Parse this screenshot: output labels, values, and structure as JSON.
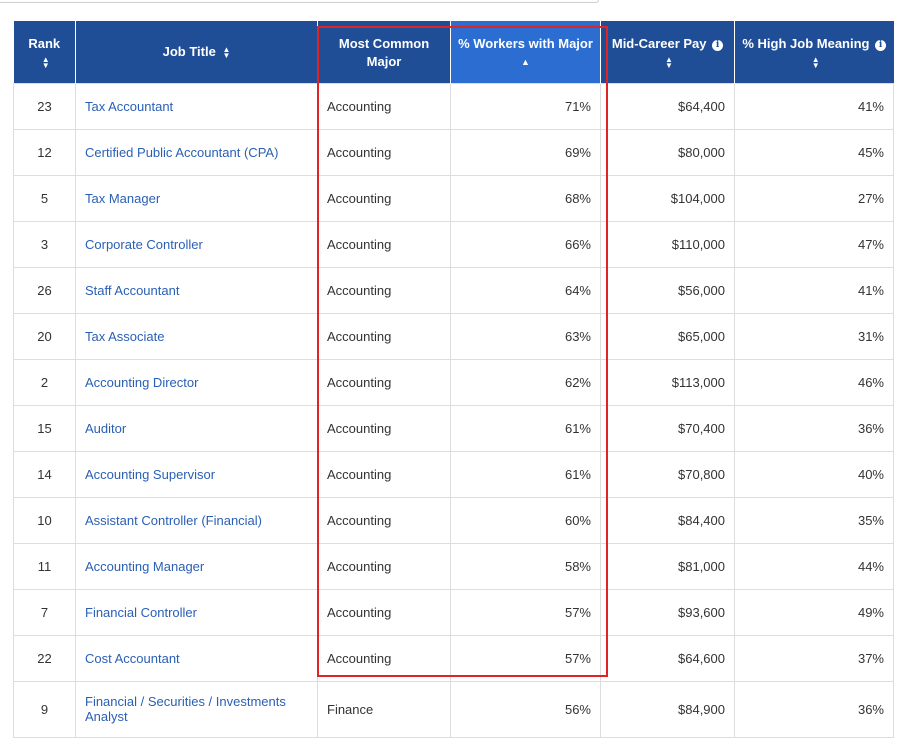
{
  "headers": {
    "rank": "Rank",
    "job_title": "Job Title",
    "major": "Most Common Major",
    "workers_pct": "% Workers with Major",
    "mid_career_pay": "Mid-Career Pay",
    "job_meaning": "% High Job Meaning"
  },
  "colors": {
    "header_bg": "#1f4e96",
    "sorted_header_bg": "#2b6dd0",
    "link": "#2a5fb5",
    "highlight": "#e02424"
  },
  "rows": [
    {
      "rank": "23",
      "title": "Tax Accountant",
      "major": "Accounting",
      "pct": "71%",
      "pay": "$64,400",
      "meaning": "41%"
    },
    {
      "rank": "12",
      "title": "Certified Public Accountant (CPA)",
      "major": "Accounting",
      "pct": "69%",
      "pay": "$80,000",
      "meaning": "45%"
    },
    {
      "rank": "5",
      "title": "Tax Manager",
      "major": "Accounting",
      "pct": "68%",
      "pay": "$104,000",
      "meaning": "27%"
    },
    {
      "rank": "3",
      "title": "Corporate Controller",
      "major": "Accounting",
      "pct": "66%",
      "pay": "$110,000",
      "meaning": "47%"
    },
    {
      "rank": "26",
      "title": "Staff Accountant",
      "major": "Accounting",
      "pct": "64%",
      "pay": "$56,000",
      "meaning": "41%"
    },
    {
      "rank": "20",
      "title": "Tax Associate",
      "major": "Accounting",
      "pct": "63%",
      "pay": "$65,000",
      "meaning": "31%"
    },
    {
      "rank": "2",
      "title": "Accounting Director",
      "major": "Accounting",
      "pct": "62%",
      "pay": "$113,000",
      "meaning": "46%"
    },
    {
      "rank": "15",
      "title": "Auditor",
      "major": "Accounting",
      "pct": "61%",
      "pay": "$70,400",
      "meaning": "36%"
    },
    {
      "rank": "14",
      "title": "Accounting Supervisor",
      "major": "Accounting",
      "pct": "61%",
      "pay": "$70,800",
      "meaning": "40%"
    },
    {
      "rank": "10",
      "title": "Assistant Controller (Financial)",
      "major": "Accounting",
      "pct": "60%",
      "pay": "$84,400",
      "meaning": "35%"
    },
    {
      "rank": "11",
      "title": "Accounting Manager",
      "major": "Accounting",
      "pct": "58%",
      "pay": "$81,000",
      "meaning": "44%"
    },
    {
      "rank": "7",
      "title": "Financial Controller",
      "major": "Accounting",
      "pct": "57%",
      "pay": "$93,600",
      "meaning": "49%"
    },
    {
      "rank": "22",
      "title": "Cost Accountant",
      "major": "Accounting",
      "pct": "57%",
      "pay": "$64,600",
      "meaning": "37%"
    },
    {
      "rank": "9",
      "title": "Financial / Securities / Investments Analyst",
      "major": "Finance",
      "pct": "56%",
      "pay": "$84,900",
      "meaning": "36%"
    }
  ]
}
